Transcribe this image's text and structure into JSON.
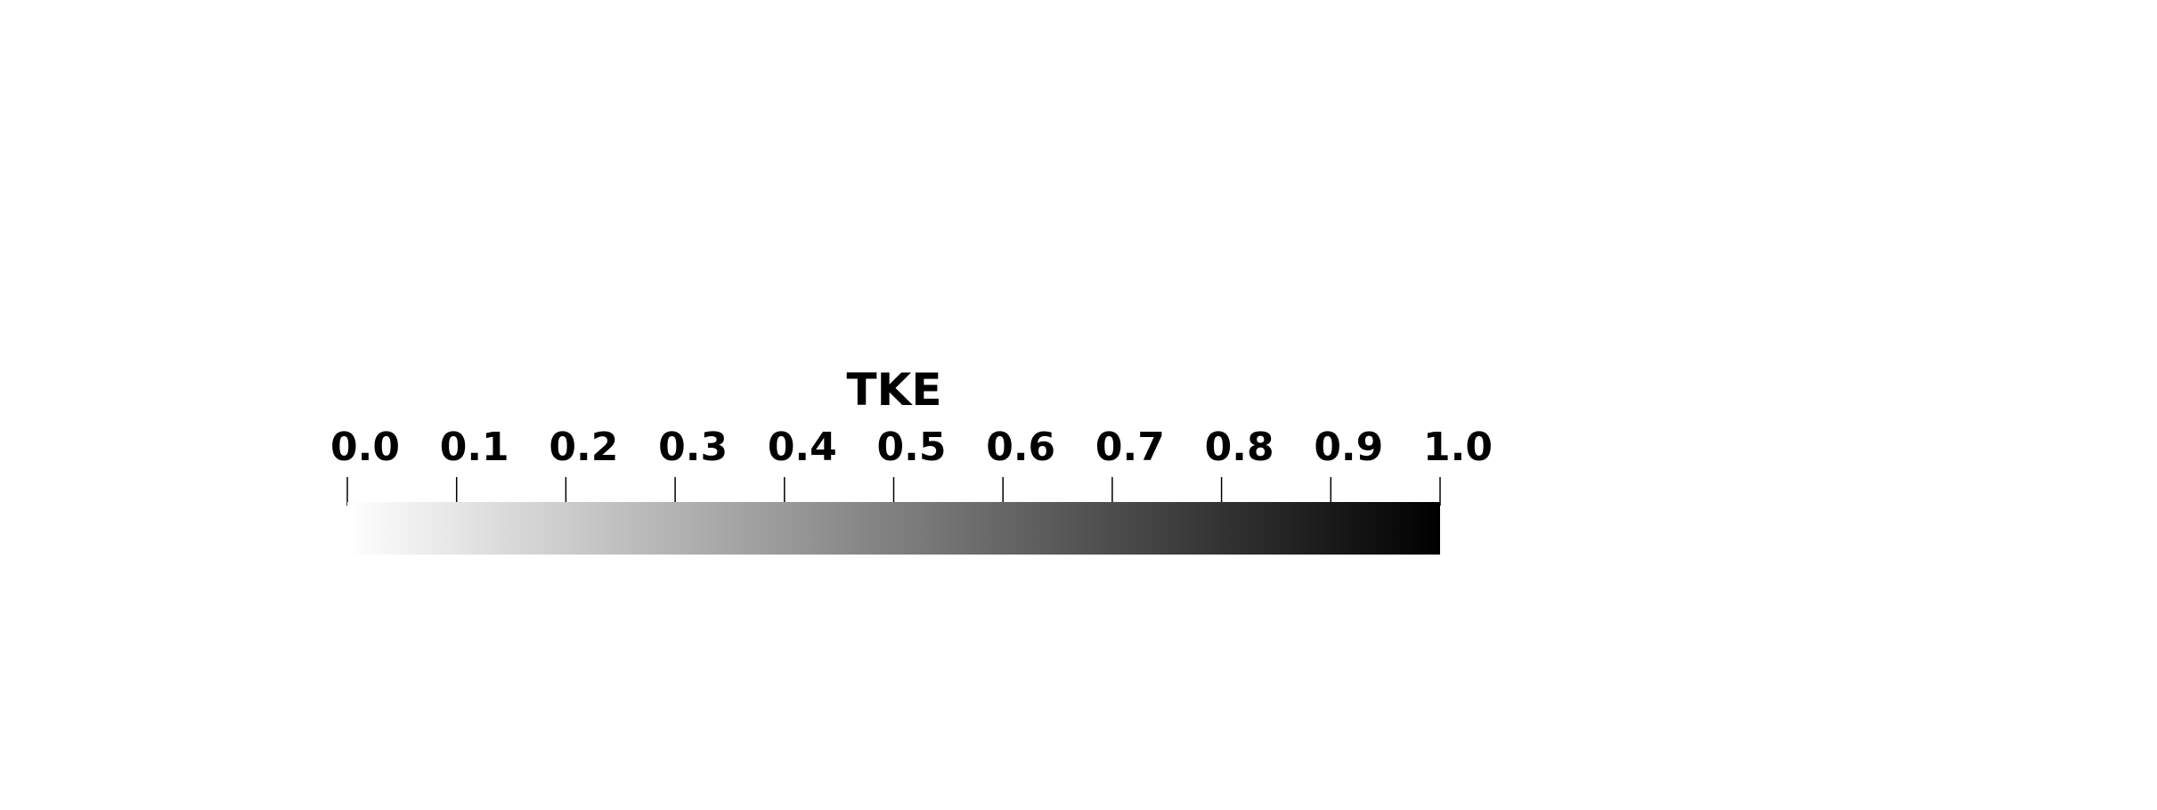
{
  "chart_data": {
    "type": "colorbar",
    "title": "TKE",
    "range": [
      0.0,
      1.0
    ],
    "ticks": [
      0.0,
      0.1,
      0.2,
      0.3,
      0.4,
      0.5,
      0.6,
      0.7,
      0.8,
      0.9,
      1.0
    ],
    "tick_labels": [
      "0.0",
      "0.1",
      "0.2",
      "0.3",
      "0.4",
      "0.5",
      "0.6",
      "0.7",
      "0.8",
      "0.9",
      "1.0"
    ],
    "colormap": {
      "low_color": "#ffffff",
      "high_color": "#000000"
    },
    "orientation": "horizontal",
    "tick_label_position": "top"
  }
}
